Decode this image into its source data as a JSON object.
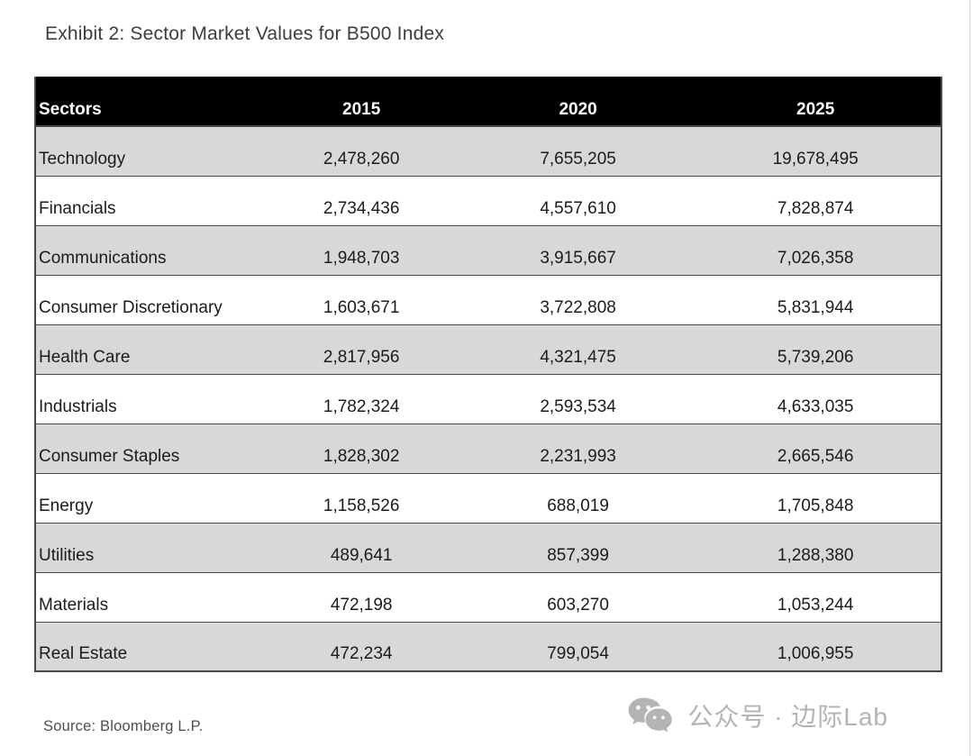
{
  "title": "Exhibit 2: Sector Market Values for B500 Index",
  "source_note": "Source: Bloomberg L.P.",
  "watermark": {
    "icon": "wechat-icon",
    "text": "公众号 · 边际Lab",
    "color": "#b4b4b4"
  },
  "colors": {
    "header_bg": "#000000",
    "header_text": "#ffffff",
    "stripe_row_bg": "#d8d8d8",
    "plain_row_bg": "#ffffff",
    "border": "#4a4a4a",
    "body_text": "#1b1b1b",
    "title_text": "#3d3d3d"
  },
  "table": {
    "columns": [
      "Sectors",
      "2015",
      "2020",
      "2025"
    ],
    "rows": [
      {
        "cells": [
          "Technology",
          "2,478,260",
          "7,655,205",
          "19,678,495"
        ]
      },
      {
        "cells": [
          "Financials",
          "2,734,436",
          "4,557,610",
          "7,828,874"
        ]
      },
      {
        "cells": [
          "Communications",
          "1,948,703",
          "3,915,667",
          "7,026,358"
        ]
      },
      {
        "cells": [
          "Consumer Discretionary",
          "1,603,671",
          "3,722,808",
          "5,831,944"
        ]
      },
      {
        "cells": [
          "Health Care",
          "2,817,956",
          "4,321,475",
          "5,739,206"
        ]
      },
      {
        "cells": [
          "Industrials",
          "1,782,324",
          "2,593,534",
          "4,633,035"
        ]
      },
      {
        "cells": [
          "Consumer Staples",
          "1,828,302",
          "2,231,993",
          "2,665,546"
        ]
      },
      {
        "cells": [
          "Energy",
          "1,158,526",
          "688,019",
          "1,705,848"
        ]
      },
      {
        "cells": [
          "Utilities",
          "489,641",
          "857,399",
          "1,288,380"
        ]
      },
      {
        "cells": [
          "Materials",
          "472,198",
          "603,270",
          "1,053,244"
        ]
      },
      {
        "cells": [
          "Real Estate",
          "472,234",
          "799,054",
          "1,006,955"
        ]
      }
    ]
  },
  "chart_data": {
    "type": "table",
    "title": "Exhibit 2: Sector Market Values for B500 Index",
    "columns": [
      "Sectors",
      "2015",
      "2020",
      "2025"
    ],
    "rows": [
      [
        "Technology",
        2478260,
        7655205,
        19678495
      ],
      [
        "Financials",
        2734436,
        4557610,
        7828874
      ],
      [
        "Communications",
        1948703,
        3915667,
        7026358
      ],
      [
        "Consumer Discretionary",
        1603671,
        3722808,
        5831944
      ],
      [
        "Health Care",
        2817956,
        4321475,
        5739206
      ],
      [
        "Industrials",
        1782324,
        2593534,
        4633035
      ],
      [
        "Consumer Staples",
        1828302,
        2231993,
        2665546
      ],
      [
        "Energy",
        1158526,
        688019,
        1705848
      ],
      [
        "Utilities",
        489641,
        857399,
        1288380
      ],
      [
        "Materials",
        472198,
        603270,
        1053244
      ],
      [
        "Real Estate",
        472234,
        799054,
        1006955
      ]
    ],
    "source": "Source: Bloomberg L.P.",
    "layout": {
      "header_style": "black background, white bold text, bottom-aligned",
      "striping": "odd data rows light gray #d8d8d8 starting with first row",
      "value_alignment": "center",
      "sector_alignment": "left"
    }
  }
}
